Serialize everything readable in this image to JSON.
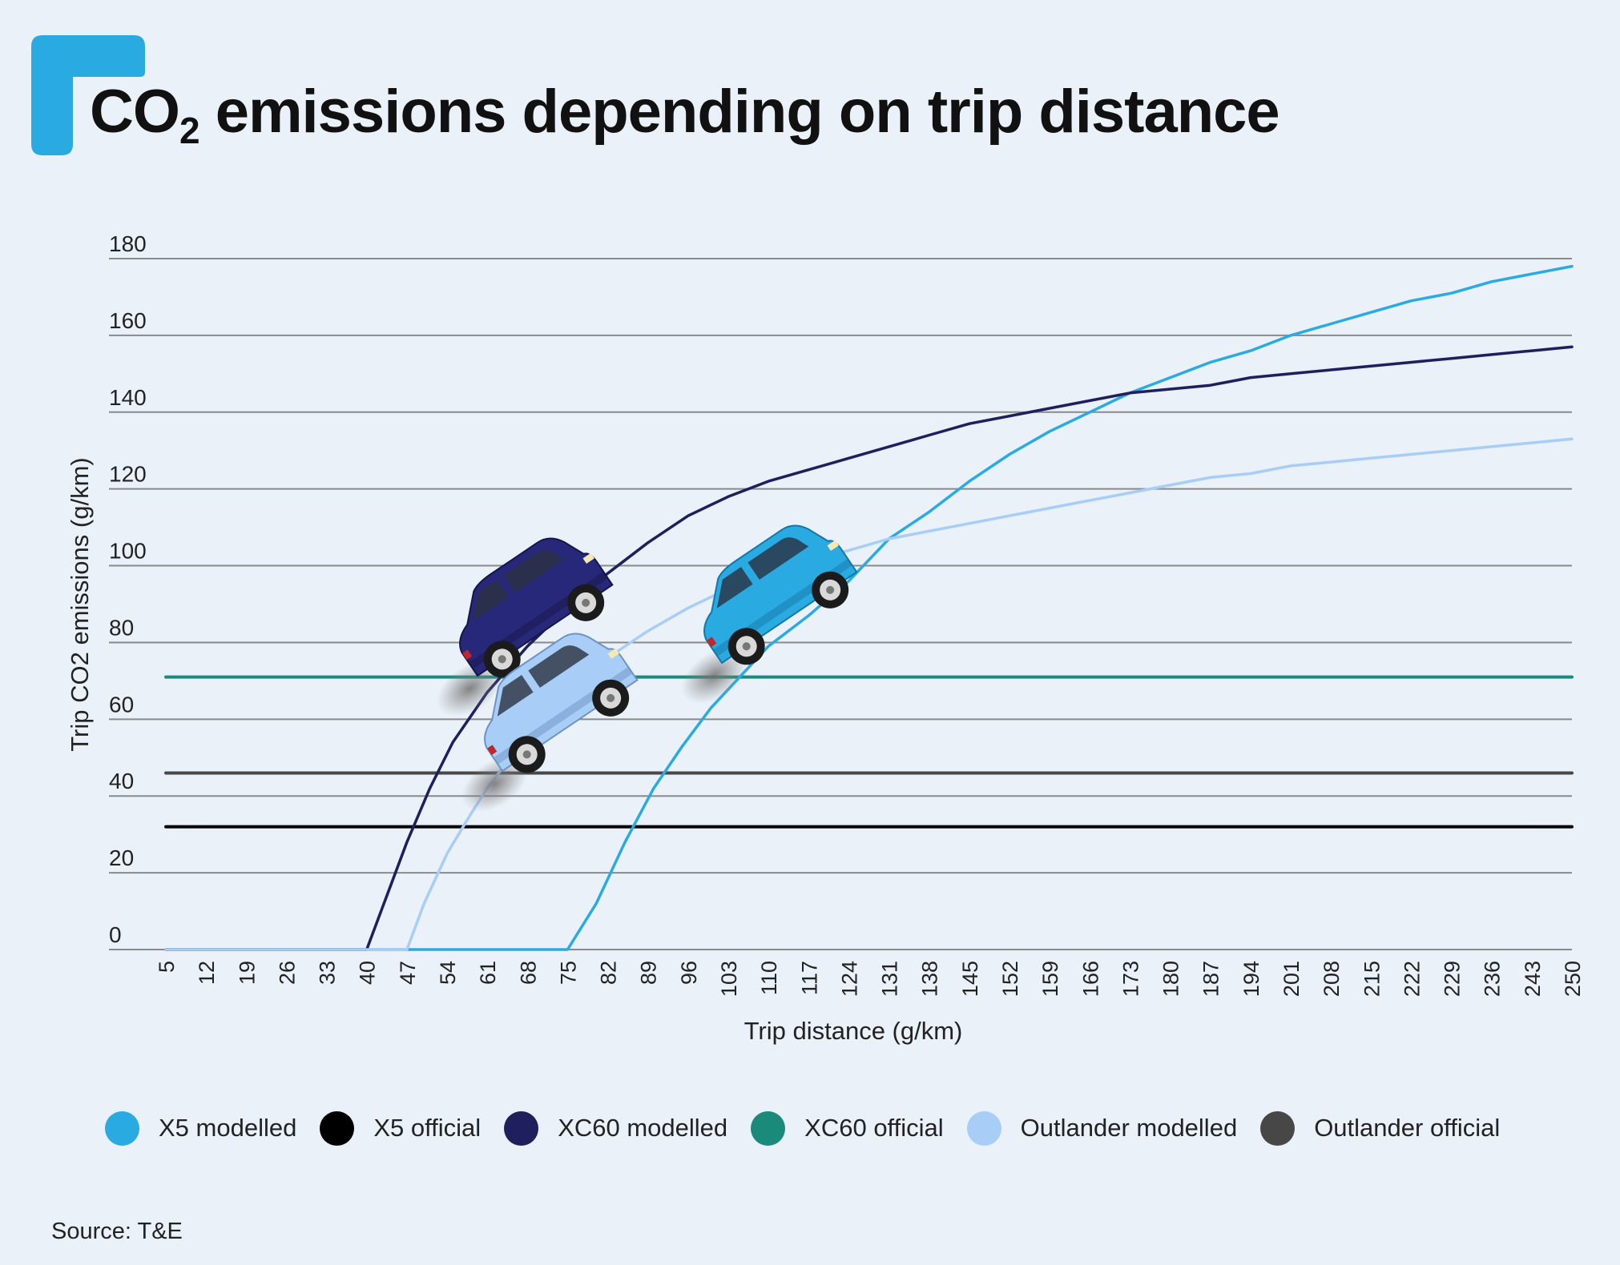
{
  "title_parts": {
    "before": "CO",
    "sub": "2",
    "after": " emissions depending on trip distance"
  },
  "source": "Source: T&E",
  "colors": {
    "background": "#eaf1f9",
    "brand": "#29abe2",
    "grid": "#8a8a8a"
  },
  "chart_data": {
    "type": "line",
    "title": "CO2 emissions depending on trip distance",
    "xlabel": "Trip distance (g/km)",
    "ylabel": "Trip CO2 emissions (g/km)",
    "xlim": [
      5,
      250
    ],
    "ylim": [
      0,
      180
    ],
    "x_ticks": [
      5,
      12,
      19,
      26,
      33,
      40,
      47,
      54,
      61,
      68,
      75,
      82,
      89,
      96,
      103,
      110,
      117,
      124,
      131,
      138,
      145,
      152,
      159,
      166,
      173,
      180,
      187,
      194,
      201,
      208,
      215,
      222,
      229,
      236,
      243,
      250
    ],
    "y_ticks": [
      0,
      20,
      40,
      60,
      80,
      100,
      120,
      140,
      160,
      180
    ],
    "grid": "horizontal",
    "legend_position": "bottom",
    "series": [
      {
        "name": "X5 modelled",
        "color": "#29abe2",
        "style": "curve",
        "points": [
          [
            5,
            0
          ],
          [
            75,
            0
          ],
          [
            80,
            12
          ],
          [
            85,
            28
          ],
          [
            90,
            42
          ],
          [
            95,
            53
          ],
          [
            100,
            63
          ],
          [
            105,
            71
          ],
          [
            110,
            79
          ],
          [
            117,
            87
          ],
          [
            124,
            96
          ],
          [
            131,
            107
          ],
          [
            138,
            114
          ],
          [
            145,
            122
          ],
          [
            152,
            129
          ],
          [
            159,
            135
          ],
          [
            166,
            140
          ],
          [
            173,
            145
          ],
          [
            180,
            149
          ],
          [
            187,
            153
          ],
          [
            194,
            156
          ],
          [
            201,
            160
          ],
          [
            208,
            163
          ],
          [
            215,
            166
          ],
          [
            222,
            169
          ],
          [
            229,
            171
          ],
          [
            236,
            174
          ],
          [
            243,
            176
          ],
          [
            250,
            178
          ]
        ]
      },
      {
        "name": "X5 official",
        "color": "#000000",
        "style": "flat",
        "points": [
          [
            5,
            32
          ],
          [
            250,
            32
          ]
        ]
      },
      {
        "name": "XC60 modelled",
        "color": "#1f1f5e",
        "style": "curve",
        "points": [
          [
            5,
            0
          ],
          [
            40,
            0
          ],
          [
            43,
            12
          ],
          [
            47,
            28
          ],
          [
            51,
            42
          ],
          [
            55,
            54
          ],
          [
            61,
            67
          ],
          [
            68,
            79
          ],
          [
            75,
            89
          ],
          [
            82,
            98
          ],
          [
            89,
            106
          ],
          [
            96,
            113
          ],
          [
            103,
            118
          ],
          [
            110,
            122
          ],
          [
            117,
            125
          ],
          [
            124,
            128
          ],
          [
            131,
            131
          ],
          [
            138,
            134
          ],
          [
            145,
            137
          ],
          [
            152,
            139
          ],
          [
            159,
            141
          ],
          [
            166,
            143
          ],
          [
            173,
            145
          ],
          [
            180,
            146
          ],
          [
            187,
            147
          ],
          [
            194,
            149
          ],
          [
            201,
            150
          ],
          [
            208,
            151
          ],
          [
            215,
            152
          ],
          [
            222,
            153
          ],
          [
            229,
            154
          ],
          [
            236,
            155
          ],
          [
            243,
            156
          ],
          [
            250,
            157
          ]
        ]
      },
      {
        "name": "XC60 official",
        "color": "#1a8a7a",
        "style": "flat",
        "points": [
          [
            5,
            71
          ],
          [
            250,
            71
          ]
        ]
      },
      {
        "name": "Outlander modelled",
        "color": "#a8cdf6",
        "style": "curve",
        "points": [
          [
            5,
            0
          ],
          [
            47,
            0
          ],
          [
            50,
            12
          ],
          [
            54,
            25
          ],
          [
            58,
            35
          ],
          [
            61,
            42
          ],
          [
            68,
            56
          ],
          [
            75,
            67
          ],
          [
            82,
            76
          ],
          [
            89,
            83
          ],
          [
            96,
            89
          ],
          [
            103,
            94
          ],
          [
            110,
            98
          ],
          [
            117,
            101
          ],
          [
            124,
            104
          ],
          [
            131,
            107
          ],
          [
            138,
            109
          ],
          [
            145,
            111
          ],
          [
            152,
            113
          ],
          [
            159,
            115
          ],
          [
            166,
            117
          ],
          [
            173,
            119
          ],
          [
            180,
            121
          ],
          [
            187,
            123
          ],
          [
            194,
            124
          ],
          [
            201,
            126
          ],
          [
            208,
            127
          ],
          [
            215,
            128
          ],
          [
            222,
            129
          ],
          [
            229,
            130
          ],
          [
            236,
            131
          ],
          [
            243,
            132
          ],
          [
            250,
            133
          ]
        ]
      },
      {
        "name": "Outlander official",
        "color": "#474747",
        "style": "flat",
        "points": [
          [
            5,
            46
          ],
          [
            250,
            46
          ]
        ]
      }
    ]
  }
}
